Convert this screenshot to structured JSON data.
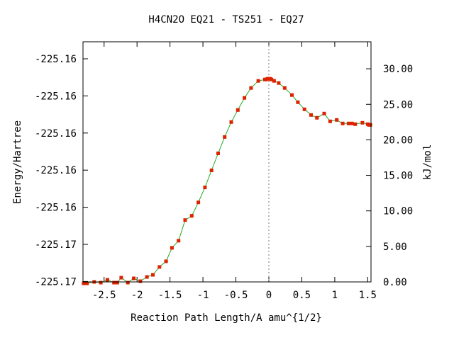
{
  "chart_data": {
    "type": "scatter",
    "title": "H4CN2O   EQ21 - TS251 - EQ27",
    "xlabel": "Reaction Path Length/A amu^{1/2}",
    "ylabel_left": "Energy/Hartree",
    "ylabel_right": "kJ/mol",
    "xlim": [
      -2.82,
      1.55
    ],
    "ylim_right": [
      0,
      33.8
    ],
    "x_ticks": [
      "-2.5",
      "-2",
      "-1.5",
      "-1",
      "-0.5",
      "0",
      "0.5",
      "1",
      "1.5"
    ],
    "left_tick_labels": [
      "-225.16",
      "-225.16",
      "-225.16",
      "-225.16",
      "-225.16",
      "-225.17",
      "-225.17"
    ],
    "right_tick_labels": [
      "0.00",
      "5.00",
      "10.00",
      "15.00",
      "20.00",
      "25.00",
      "30.00"
    ],
    "ts_marker_x": 0,
    "series": [
      {
        "x": [
          -2.81,
          -2.79,
          -2.77,
          -2.76,
          -2.65,
          -2.55,
          -2.45,
          -2.35,
          -2.32,
          -2.3,
          -2.24,
          -2.14,
          -2.05,
          -1.95,
          -1.85,
          -1.76,
          -1.66,
          -1.56,
          -1.47,
          -1.37,
          -1.27,
          -1.17,
          -1.07,
          -0.97,
          -0.87,
          -0.77,
          -0.67,
          -0.57,
          -0.47,
          -0.37,
          -0.27,
          -0.16,
          -0.06,
          -0.04,
          -0.02,
          0.0,
          0.02,
          0.04,
          0.08,
          0.15,
          0.24,
          0.35,
          0.44,
          0.54,
          0.64,
          0.73,
          0.84,
          0.93,
          1.03,
          1.12,
          1.21,
          1.26,
          1.31,
          1.42,
          1.5,
          1.52,
          1.54
        ],
        "y": [
          -0.2,
          -0.2,
          -0.2,
          -0.2,
          0.0,
          -0.1,
          0.3,
          -0.1,
          -0.1,
          -0.1,
          0.6,
          -0.1,
          0.5,
          0.1,
          0.7,
          1.0,
          2.1,
          2.9,
          4.8,
          5.8,
          8.7,
          9.3,
          11.2,
          13.3,
          15.7,
          18.1,
          20.4,
          22.5,
          24.2,
          25.9,
          27.3,
          28.3,
          28.5,
          28.5,
          28.6,
          28.6,
          28.6,
          28.5,
          28.3,
          28.0,
          27.3,
          26.3,
          25.3,
          24.3,
          23.5,
          23.1,
          23.7,
          22.6,
          22.8,
          22.3,
          22.3,
          22.3,
          22.2,
          22.4,
          22.2,
          22.1,
          22.1
        ]
      }
    ]
  }
}
